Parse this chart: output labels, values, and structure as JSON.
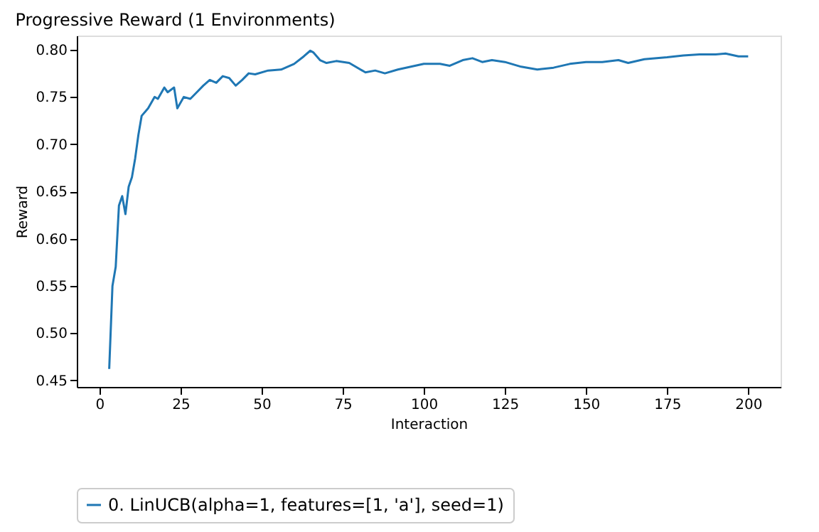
{
  "chart_data": {
    "type": "line",
    "title": "Progressive Reward (1 Environments)",
    "xlabel": "Interaction",
    "ylabel": "Reward",
    "x": [
      3,
      4,
      5,
      6,
      7,
      8,
      9,
      10,
      11,
      12,
      13,
      15,
      17,
      18,
      20,
      21,
      23,
      24,
      26,
      28,
      30,
      32,
      34,
      36,
      38,
      40,
      42,
      44,
      46,
      48,
      52,
      56,
      60,
      63,
      65,
      66,
      68,
      70,
      73,
      77,
      82,
      85,
      88,
      92,
      96,
      100,
      105,
      108,
      112,
      115,
      118,
      121,
      125,
      130,
      135,
      140,
      145,
      150,
      155,
      160,
      163,
      168,
      175,
      180,
      185,
      190,
      193,
      197,
      200
    ],
    "series": [
      {
        "name": "0. LinUCB(alpha=1, features=[1, 'a'], seed=1)",
        "color": "#1f77b4",
        "values": [
          0.462,
          0.55,
          0.57,
          0.635,
          0.645,
          0.626,
          0.655,
          0.665,
          0.685,
          0.71,
          0.73,
          0.738,
          0.75,
          0.748,
          0.76,
          0.755,
          0.76,
          0.738,
          0.75,
          0.748,
          0.755,
          0.762,
          0.768,
          0.765,
          0.772,
          0.77,
          0.762,
          0.768,
          0.775,
          0.774,
          0.778,
          0.779,
          0.785,
          0.793,
          0.799,
          0.797,
          0.789,
          0.786,
          0.788,
          0.786,
          0.776,
          0.778,
          0.775,
          0.779,
          0.782,
          0.785,
          0.785,
          0.783,
          0.789,
          0.791,
          0.787,
          0.789,
          0.787,
          0.782,
          0.779,
          0.781,
          0.785,
          0.787,
          0.787,
          0.789,
          0.786,
          0.79,
          0.792,
          0.794,
          0.795,
          0.795,
          0.796,
          0.793,
          0.793
        ]
      }
    ],
    "xlim": [
      -7,
      210
    ],
    "ylim": [
      0.443,
      0.815
    ],
    "xticks": [
      0,
      25,
      50,
      75,
      100,
      125,
      150,
      175,
      200
    ],
    "yticks": [
      {
        "value": 0.45,
        "label": "0.45"
      },
      {
        "value": 0.5,
        "label": "0.50"
      },
      {
        "value": 0.55,
        "label": "0.55"
      },
      {
        "value": 0.6,
        "label": "0.60"
      },
      {
        "value": 0.65,
        "label": "0.65"
      },
      {
        "value": 0.7,
        "label": "0.70"
      },
      {
        "value": 0.75,
        "label": "0.75"
      },
      {
        "value": 0.8,
        "label": "0.80"
      }
    ],
    "grid": false,
    "legend": "bottom left",
    "marker": "none",
    "line_style": "solid"
  }
}
